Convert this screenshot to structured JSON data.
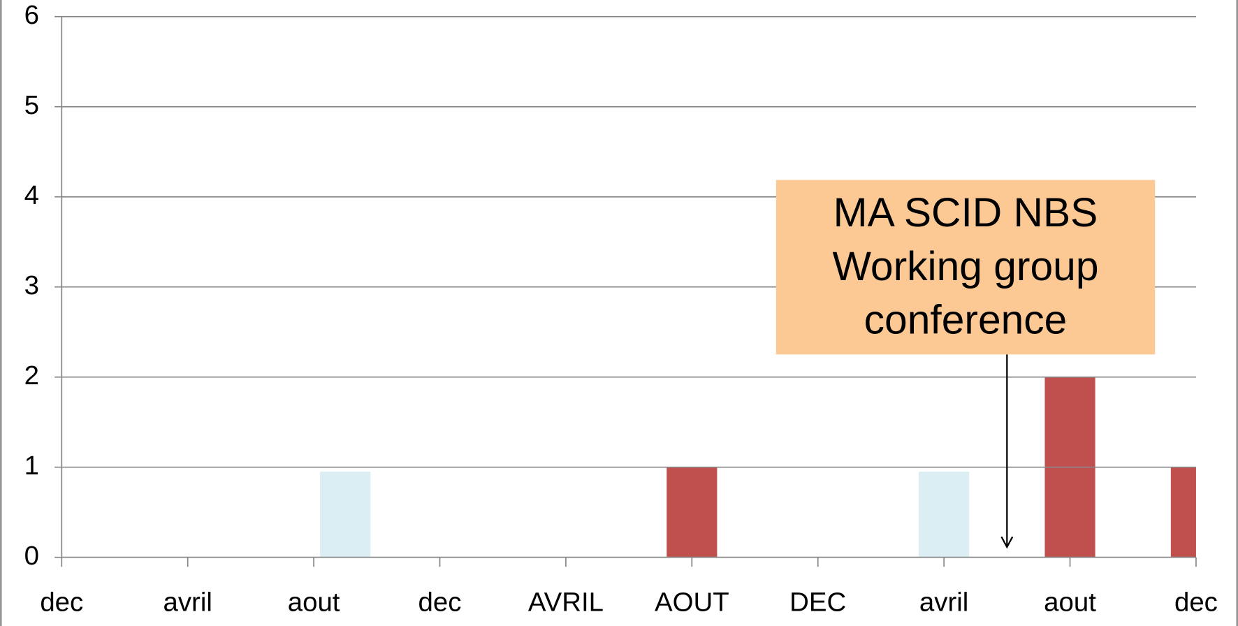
{
  "chart_data": {
    "type": "bar",
    "categories": [
      "dec",
      null,
      null,
      null,
      "avril",
      null,
      null,
      null,
      "aout",
      null,
      null,
      null,
      "dec",
      null,
      null,
      null,
      "AVRIL",
      null,
      null,
      null,
      "AOUT",
      null,
      null,
      null,
      "DEC",
      null,
      null,
      null,
      "avril",
      null,
      null,
      null,
      "aout",
      null,
      null,
      null,
      "dec"
    ],
    "series": [
      {
        "color": "#c0504d",
        "values": [
          null,
          null,
          null,
          null,
          null,
          null,
          null,
          null,
          null,
          null,
          null,
          null,
          null,
          null,
          null,
          null,
          null,
          null,
          null,
          null,
          1,
          null,
          null,
          null,
          null,
          null,
          null,
          null,
          null,
          null,
          null,
          null,
          2,
          null,
          null,
          null,
          1
        ]
      },
      {
        "color": "#daeef3",
        "values": [
          null,
          null,
          null,
          null,
          null,
          null,
          null,
          null,
          null,
          0.95,
          null,
          null,
          null,
          null,
          null,
          null,
          null,
          null,
          null,
          null,
          null,
          null,
          null,
          null,
          null,
          null,
          null,
          null,
          0.95,
          null,
          null,
          null,
          null,
          null,
          null,
          null,
          null
        ]
      }
    ],
    "ylim": [
      0,
      6
    ],
    "yticks": [
      0,
      1,
      2,
      3,
      4,
      5,
      6
    ],
    "grid": true,
    "annotation": {
      "lines": [
        "MA SCID NBS",
        "Working group",
        "conference"
      ],
      "category": 30
    }
  }
}
